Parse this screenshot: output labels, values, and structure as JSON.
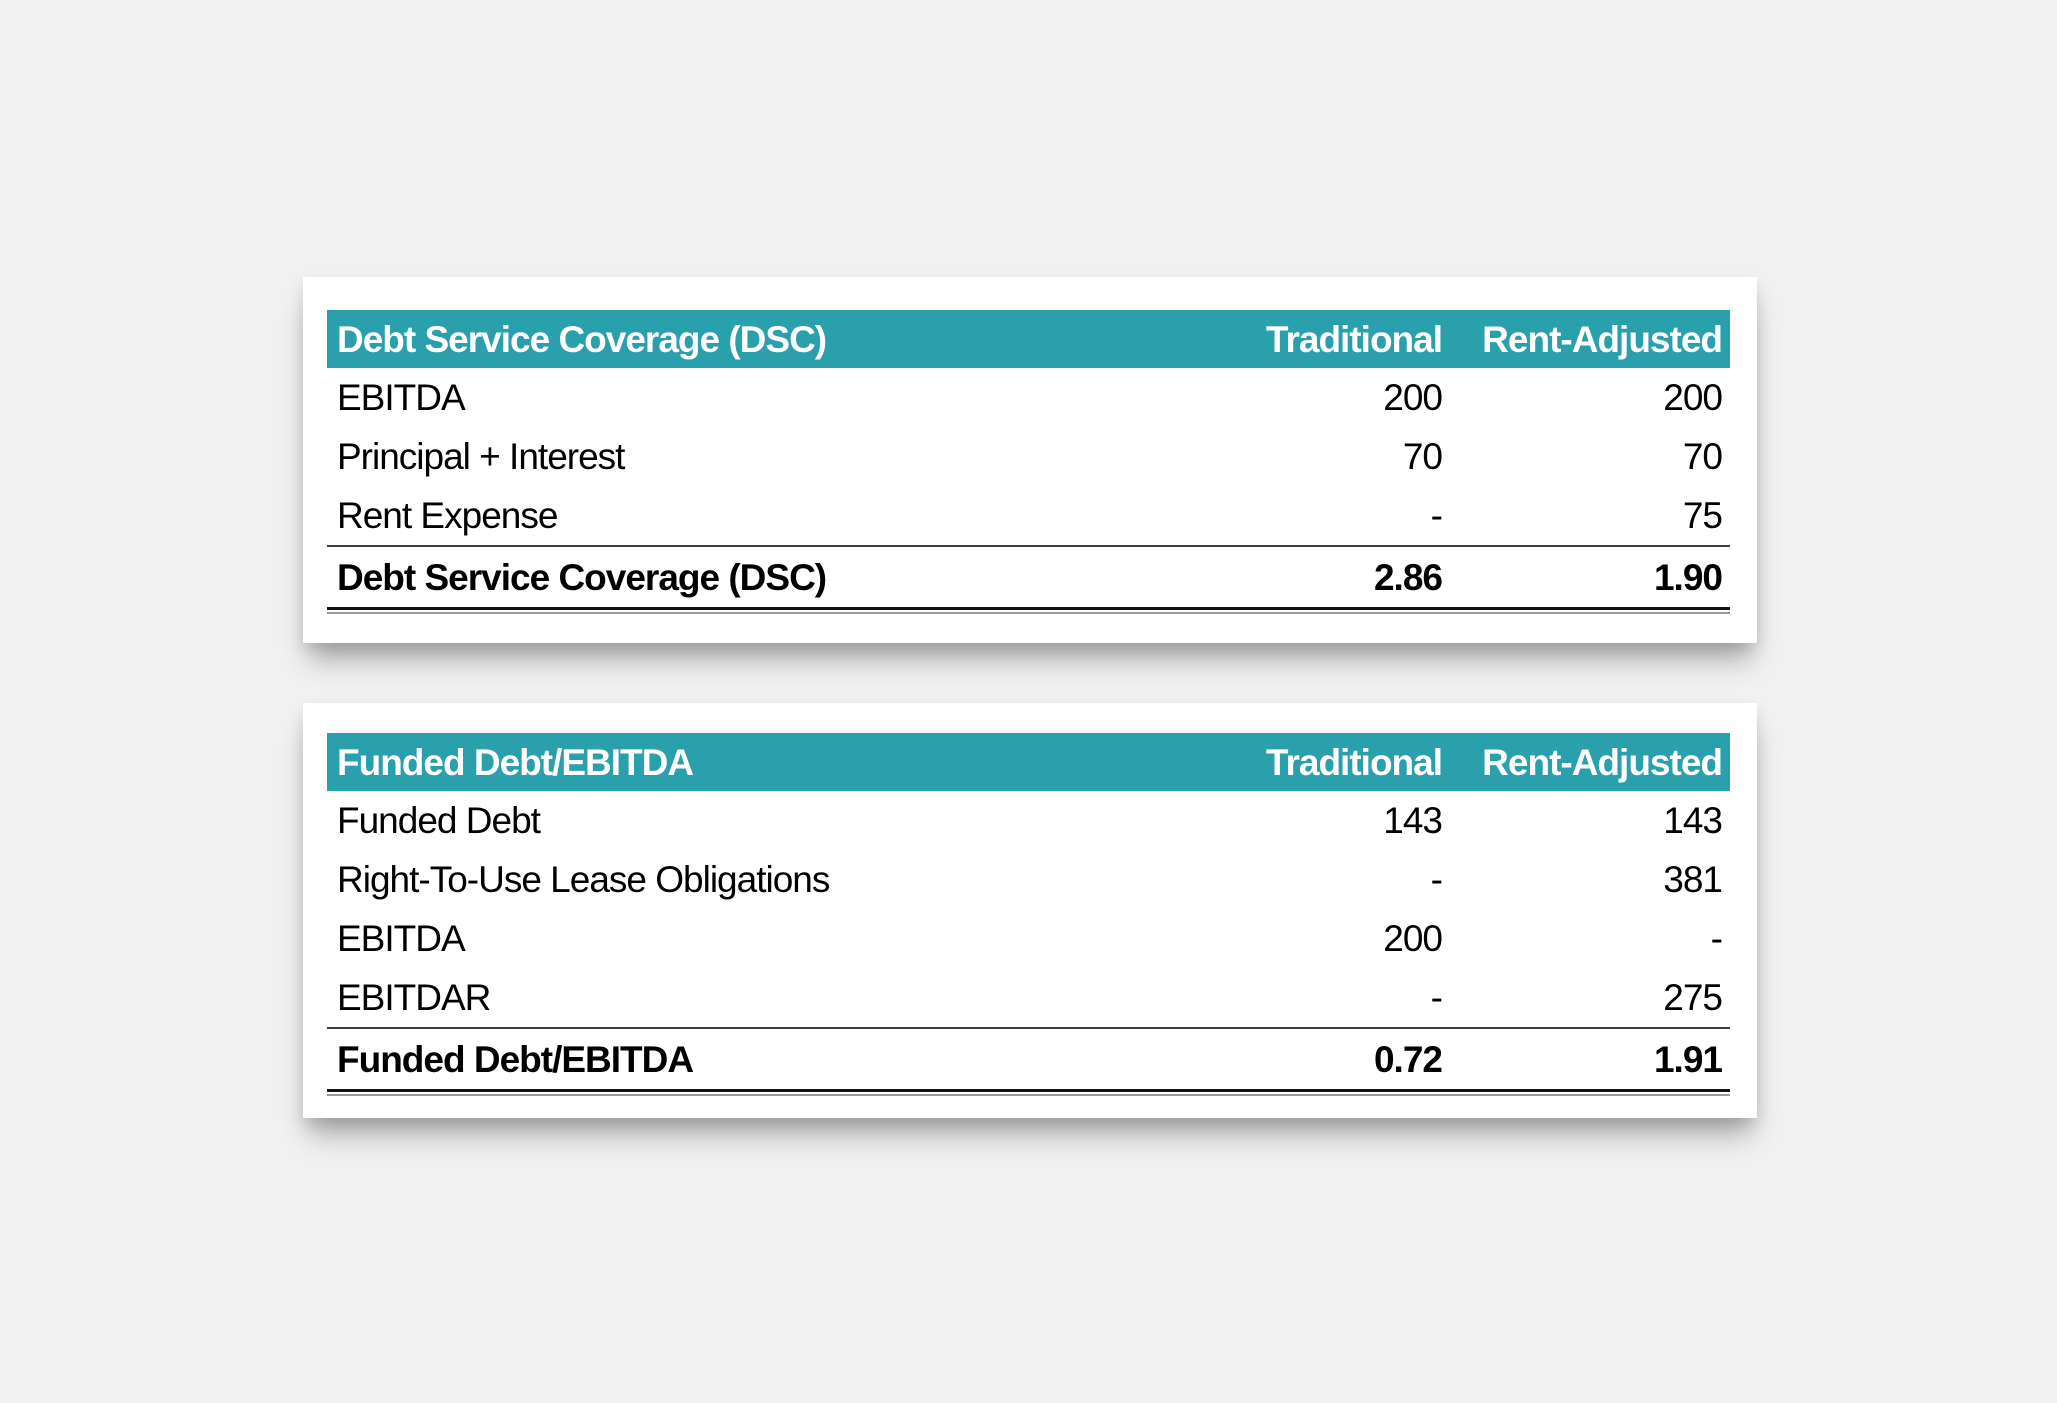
{
  "page": {
    "background_color": "#f1f1f1",
    "card_background_color": "#ffffff"
  },
  "theme": {
    "accent_teal": "#2AA0AC",
    "header_text_color": "#ffffff",
    "body_text_color": "#000000"
  },
  "chart_data": [
    {
      "type": "table",
      "title": "Debt Service Coverage (DSC)",
      "columns": [
        "Traditional",
        "Rent-Adjusted"
      ],
      "rows": [
        [
          "EBITDA",
          "200",
          "200"
        ],
        [
          "Principal + Interest",
          "70",
          "70"
        ],
        [
          "Rent Expense",
          "-",
          "75"
        ]
      ],
      "total_row": [
        "Debt Service Coverage (DSC)",
        "2.86",
        "1.90"
      ]
    },
    {
      "type": "table",
      "title": "Funded Debt/EBITDA",
      "columns": [
        "Traditional",
        "Rent-Adjusted"
      ],
      "rows": [
        [
          "Funded Debt",
          "143",
          "143"
        ],
        [
          "Right-To-Use Lease Obligations",
          "-",
          "381"
        ],
        [
          "EBITDA",
          "200",
          "-"
        ],
        [
          "EBITDAR",
          "-",
          "275"
        ]
      ],
      "total_row": [
        "Funded Debt/EBITDA",
        "0.72",
        "1.91"
      ]
    }
  ]
}
